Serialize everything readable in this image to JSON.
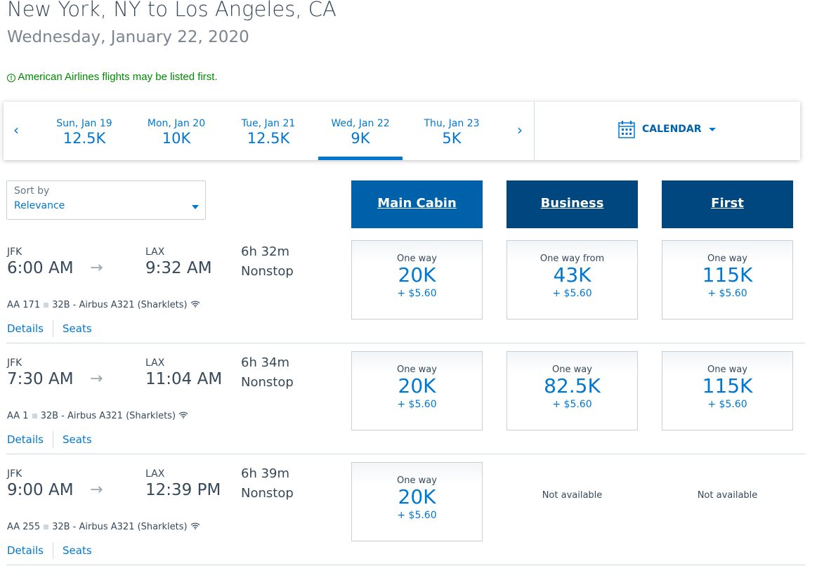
{
  "header": {
    "title": "New York, NY to Los Angeles, CA",
    "date": "Wednesday, January 22, 2020",
    "notice": "American Airlines flights may be listed first.",
    "notice_icon": "!"
  },
  "date_strip": {
    "prev": "‹",
    "next": "›",
    "calendar_label": "CALENDAR",
    "tabs": [
      {
        "date": "Sun, Jan 19",
        "price": "12.5K"
      },
      {
        "date": "Mon, Jan 20",
        "price": "10K"
      },
      {
        "date": "Tue, Jan 21",
        "price": "12.5K"
      },
      {
        "date": "Wed, Jan 22",
        "price": "9K",
        "selected": true
      },
      {
        "date": "Thu, Jan 23",
        "price": "5K"
      }
    ]
  },
  "sort": {
    "label": "Sort by",
    "value": "Relevance"
  },
  "columns": [
    "Main Cabin",
    "Business",
    "First"
  ],
  "colors": {
    "main_cabin": "#0061ab",
    "premium": "#00467f",
    "link": "#0078d2",
    "notice": "#008a00"
  },
  "links": {
    "details": "Details",
    "seats": "Seats"
  },
  "flights": [
    {
      "from": "JFK",
      "to": "LAX",
      "depart": "6:00 AM",
      "arrive": "9:32 AM",
      "duration": "6h 32m",
      "stops": "Nonstop",
      "flight": "AA 171",
      "aircraft": "32B - Airbus A321 (Sharklets)",
      "fares": [
        {
          "label": "One way",
          "miles": "20K",
          "tax": "+ $5.60"
        },
        {
          "label": "One way from",
          "miles": "43K",
          "tax": "+ $5.60"
        },
        {
          "label": "One way",
          "miles": "115K",
          "tax": "+ $5.60"
        }
      ]
    },
    {
      "from": "JFK",
      "to": "LAX",
      "depart": "7:30 AM",
      "arrive": "11:04 AM",
      "duration": "6h 34m",
      "stops": "Nonstop",
      "flight": "AA 1",
      "aircraft": "32B - Airbus A321 (Sharklets)",
      "fares": [
        {
          "label": "One way",
          "miles": "20K",
          "tax": "+ $5.60"
        },
        {
          "label": "One way",
          "miles": "82.5K",
          "tax": "+ $5.60"
        },
        {
          "label": "One way",
          "miles": "115K",
          "tax": "+ $5.60"
        }
      ]
    },
    {
      "from": "JFK",
      "to": "LAX",
      "depart": "9:00 AM",
      "arrive": "12:39 PM",
      "duration": "6h 39m",
      "stops": "Nonstop",
      "flight": "AA 255",
      "aircraft": "32B - Airbus A321 (Sharklets)",
      "fares": [
        {
          "label": "One way",
          "miles": "20K",
          "tax": "+ $5.60"
        }
      ],
      "not_available": "Not available"
    }
  ]
}
